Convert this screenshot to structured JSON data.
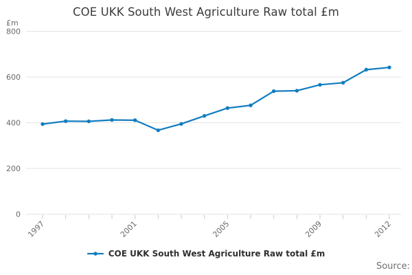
{
  "chart": {
    "title": "COE UKK South West Agriculture Raw total £m",
    "y_axis_unit": "£m",
    "legend": {
      "label": "COE UKK South West Agriculture Raw total £m"
    },
    "source": "Source:",
    "colors": {
      "line": "#107cc0",
      "grid": "#e4e4e4",
      "tick_mark": "#bccbdb",
      "axis_text": "#66696d",
      "title_text": "#3b3b3b",
      "legend_text": "#2f2f2f",
      "source_text": "#6e6e6e"
    }
  },
  "chart_data": {
    "type": "line",
    "title": "COE UKK South West Agriculture Raw total £m",
    "x": [
      1997,
      1998,
      1999,
      2000,
      2001,
      2002,
      2003,
      2004,
      2005,
      2006,
      2007,
      2008,
      2009,
      2010,
      2011,
      2012
    ],
    "series": [
      {
        "name": "COE UKK South West Agriculture Raw total £m",
        "values": [
          394,
          407,
          406,
          412,
          411,
          367,
          395,
          430,
          464,
          476,
          538,
          540,
          566,
          575,
          632,
          642
        ]
      }
    ],
    "xlabel": "",
    "ylabel": "£m",
    "ylim": [
      0,
      800
    ],
    "yticks": [
      0,
      200,
      400,
      600,
      800
    ],
    "xtick_labels": [
      "1997",
      "2001",
      "2005",
      "2009",
      "2012"
    ],
    "grid": "horizontal-only",
    "legend_position": "bottom-center",
    "annotations": [
      "Source:"
    ]
  }
}
